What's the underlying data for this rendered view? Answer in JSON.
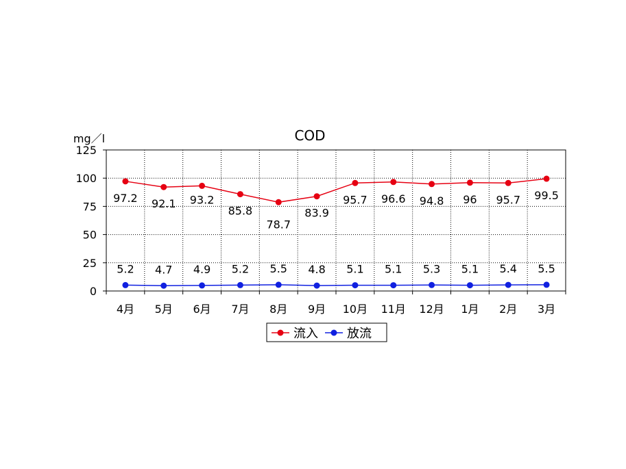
{
  "chart_data": {
    "type": "line",
    "title": "COD",
    "ylabel": "mg／l",
    "xlabel": "",
    "categories": [
      "4月",
      "5月",
      "6月",
      "7月",
      "8月",
      "9月",
      "10月",
      "11月",
      "12月",
      "1月",
      "2月",
      "3月"
    ],
    "ylim": [
      0,
      125
    ],
    "yticks": [
      "0",
      "25",
      "50",
      "75",
      "100",
      "125"
    ],
    "grid": true,
    "legend_position": "bottom",
    "series": [
      {
        "name": "流入",
        "color": "#e60012",
        "values": [
          97.2,
          92.1,
          93.2,
          85.8,
          78.7,
          83.9,
          95.7,
          96.6,
          94.8,
          96,
          95.7,
          99.5
        ],
        "labels": [
          "97.2",
          "92.1",
          "93.2",
          "85.8",
          "78.7",
          "83.9",
          "95.7",
          "96.6",
          "94.8",
          "96",
          "95.7",
          "99.5"
        ]
      },
      {
        "name": "放流",
        "color": "#1020e0",
        "values": [
          5.2,
          4.7,
          4.9,
          5.2,
          5.5,
          4.8,
          5.1,
          5.1,
          5.3,
          5.1,
          5.4,
          5.5
        ],
        "labels": [
          "5.2",
          "4.7",
          "4.9",
          "5.2",
          "5.5",
          "4.8",
          "5.1",
          "5.1",
          "5.3",
          "5.1",
          "5.4",
          "5.5"
        ]
      }
    ]
  }
}
